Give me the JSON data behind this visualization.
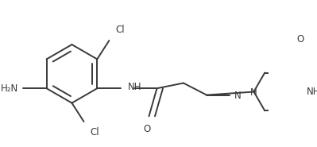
{
  "bg_color": "#ffffff",
  "line_color": "#3a3a3a",
  "text_color": "#3a3a3a",
  "line_width": 1.4,
  "font_size": 8.5,
  "xlim": [
    0,
    399
  ],
  "ylim": [
    0,
    185
  ]
}
